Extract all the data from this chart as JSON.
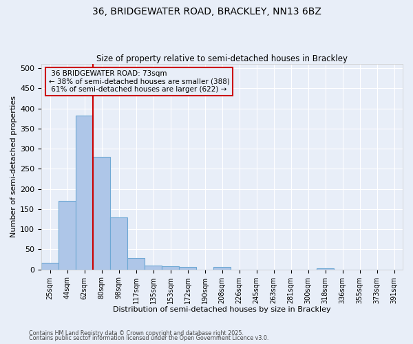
{
  "title_line1": "36, BRIDGEWATER ROAD, BRACKLEY, NN13 6BZ",
  "title_line2": "Size of property relative to semi-detached houses in Brackley",
  "xlabel": "Distribution of semi-detached houses by size in Brackley",
  "ylabel": "Number of semi-detached properties",
  "bar_labels": [
    "25sqm",
    "44sqm",
    "62sqm",
    "80sqm",
    "98sqm",
    "117sqm",
    "135sqm",
    "153sqm",
    "172sqm",
    "190sqm",
    "208sqm",
    "226sqm",
    "245sqm",
    "263sqm",
    "281sqm",
    "300sqm",
    "318sqm",
    "336sqm",
    "355sqm",
    "373sqm",
    "391sqm"
  ],
  "bar_values": [
    17,
    170,
    383,
    280,
    130,
    28,
    9,
    8,
    6,
    0,
    6,
    0,
    0,
    0,
    0,
    0,
    3,
    0,
    0,
    0,
    0
  ],
  "bar_color": "#aec6e8",
  "bar_edgecolor": "#6ea8d4",
  "property_label": "36 BRIDGEWATER ROAD: 73sqm",
  "smaller_pct": 38,
  "smaller_count": 388,
  "larger_pct": 61,
  "larger_count": 622,
  "vline_color": "#cc0000",
  "vline_bin": 2.5,
  "ylim": [
    0,
    510
  ],
  "yticks": [
    0,
    50,
    100,
    150,
    200,
    250,
    300,
    350,
    400,
    450,
    500
  ],
  "annotation_box_color": "#cc0000",
  "bg_color": "#e8eef8",
  "grid_color": "#ffffff",
  "footnote1": "Contains HM Land Registry data © Crown copyright and database right 2025.",
  "footnote2": "Contains public sector information licensed under the Open Government Licence v3.0."
}
